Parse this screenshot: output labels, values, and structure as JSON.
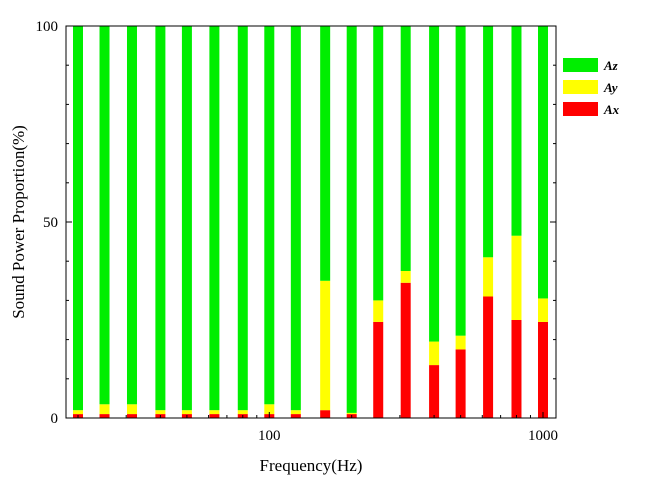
{
  "chart_data": {
    "type": "bar",
    "stacked": true,
    "title": "",
    "xlabel": "Frequency(Hz)",
    "ylabel": "Sound Power Proportion(%)",
    "x_scale": "log",
    "xlim": [
      20,
      1000
    ],
    "ylim": [
      0,
      100
    ],
    "x_ticks": [
      100,
      1000
    ],
    "y_ticks": [
      0,
      50,
      100
    ],
    "x_tick_labels": [
      "100",
      "1000"
    ],
    "y_tick_labels": [
      "0",
      "50",
      "100"
    ],
    "legend_position": "right",
    "categories": [
      20,
      25,
      31.5,
      40,
      50,
      63,
      80,
      100,
      125,
      160,
      200,
      250,
      315,
      400,
      500,
      630,
      800,
      1000
    ],
    "series": [
      {
        "name": "Ax",
        "color": "#ff0000",
        "values": [
          1,
          1,
          1,
          1,
          1,
          1,
          1,
          1,
          1,
          2,
          1,
          24.5,
          34.5,
          13.5,
          17.5,
          31,
          25,
          24.5
        ]
      },
      {
        "name": "Ay",
        "color": "#ffff00",
        "values": [
          1,
          2.5,
          2.5,
          1,
          1,
          1,
          1,
          2.5,
          1,
          33,
          0.3,
          5.5,
          3,
          6,
          3.5,
          10,
          21.5,
          6
        ]
      },
      {
        "name": "Az",
        "color": "#00ee00",
        "values": [
          98,
          96.5,
          96.5,
          98,
          98,
          98,
          98,
          96.5,
          98,
          65,
          98.7,
          70,
          62.5,
          80.5,
          79,
          59,
          53.5,
          69.5
        ]
      }
    ],
    "legend_order": [
      "Az",
      "Ay",
      "Ax"
    ]
  }
}
